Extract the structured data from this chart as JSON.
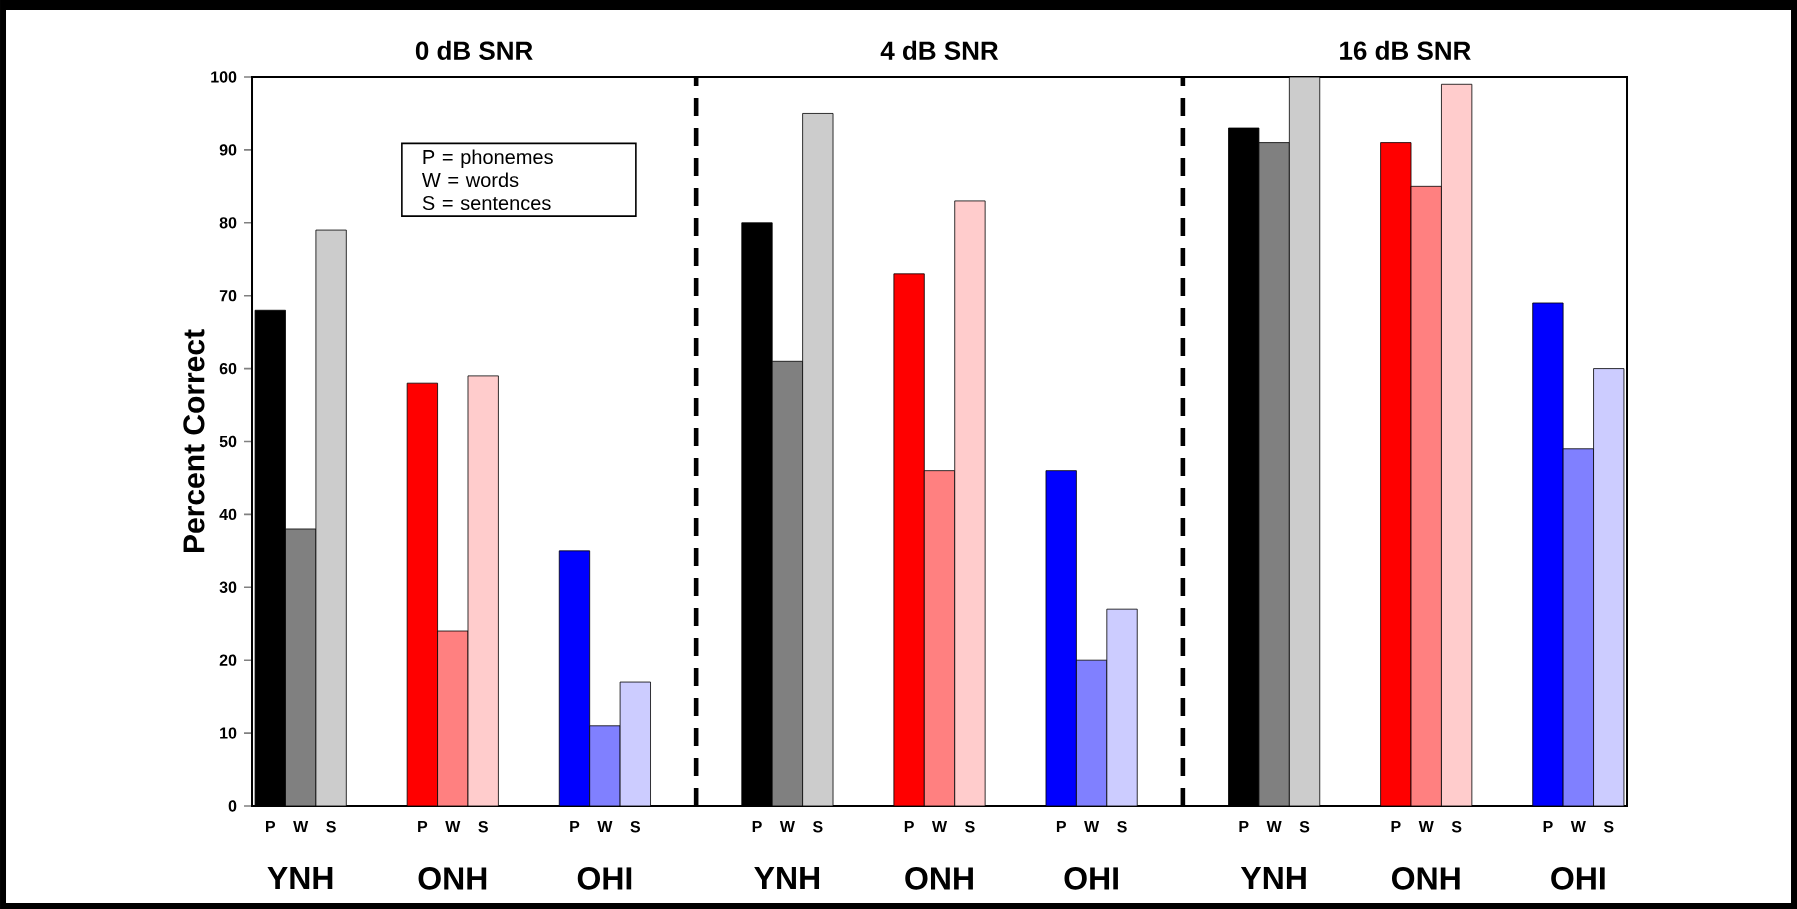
{
  "chart_data": {
    "type": "bar",
    "categories": [
      "P",
      "W",
      "S",
      null,
      null,
      "P",
      "W",
      "S",
      null,
      null,
      "P",
      "W",
      "S",
      null,
      null,
      null,
      "P",
      "W",
      "S",
      null,
      null,
      "P",
      "W",
      "S",
      null,
      null,
      "P",
      "W",
      "S",
      null,
      null,
      null,
      "P",
      "W",
      "S",
      null,
      null,
      "P",
      "W",
      "S",
      null,
      null,
      "P",
      "W",
      "S"
    ],
    "values": [
      68,
      38,
      79,
      null,
      null,
      58,
      24,
      59,
      null,
      null,
      35,
      11,
      17,
      null,
      null,
      null,
      80,
      61,
      95,
      null,
      null,
      73,
      46,
      83,
      null,
      null,
      46,
      20,
      27,
      null,
      null,
      null,
      93,
      91,
      100,
      null,
      null,
      91,
      85,
      99,
      null,
      null,
      69,
      49,
      60
    ],
    "colors": [
      "#000000",
      "#808080",
      "#cccccc",
      null,
      null,
      "#ff0000",
      "#ff8080",
      "#ffcccc",
      null,
      null,
      "#0000ff",
      "#8080ff",
      "#ccccff",
      null,
      null,
      null,
      "#000000",
      "#808080",
      "#cccccc",
      null,
      null,
      "#ff0000",
      "#ff8080",
      "#ffcccc",
      null,
      null,
      "#0000ff",
      "#8080ff",
      "#ccccff",
      null,
      null,
      null,
      "#000000",
      "#808080",
      "#cccccc",
      null,
      null,
      "#ff0000",
      "#ff8080",
      "#ffcccc",
      null,
      null,
      "#0000ff",
      "#8080ff",
      "#ccccff"
    ],
    "ylabel": "Percent Correct",
    "ylim": [
      0,
      100
    ],
    "yticks": [
      0,
      10,
      20,
      30,
      40,
      50,
      60,
      70,
      80,
      90,
      100
    ],
    "annotations": [
      "0 dB SNR",
      "4 dB SNR",
      "16 dB SNR",
      "YNH",
      "ONH",
      "OHI",
      "YNH",
      "ONH",
      "OHI",
      "YNH",
      "ONH",
      "OHI",
      "P  = phonemes",
      "W  = words",
      "S  = sentences"
    ]
  }
}
